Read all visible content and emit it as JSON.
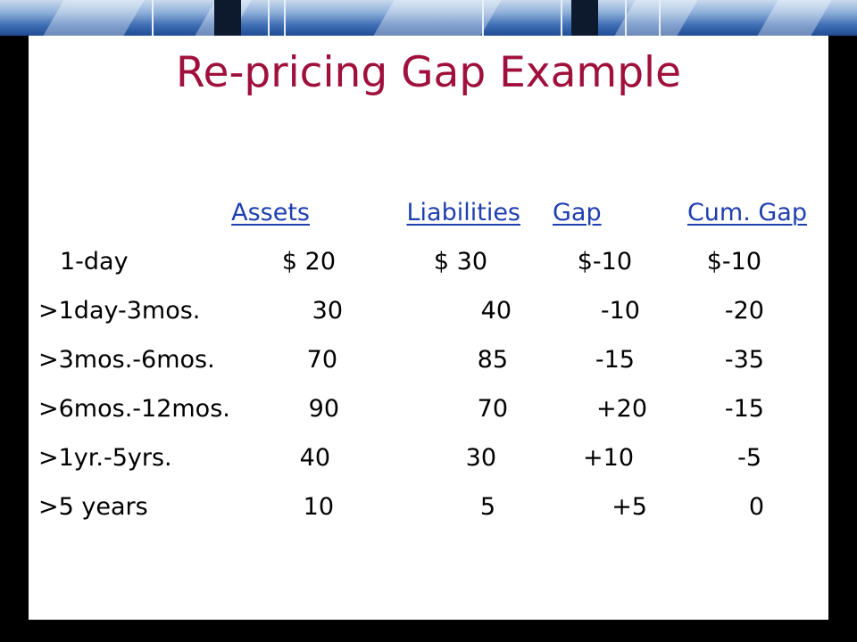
{
  "slide": {
    "title": "Re-pricing Gap Example",
    "colors": {
      "title": "#a0103c",
      "header": "#1f3fb0",
      "body_text": "#000000",
      "panel": "#ffffff",
      "frame": "#000000"
    }
  },
  "table": {
    "headers": [
      "Assets",
      "Liabilities",
      "Gap",
      "Cum. Gap"
    ],
    "rows": [
      {
        "bucket": "1-day",
        "assets": "$ 20",
        "liabilities": "$ 30",
        "gap": "$-10",
        "cum_gap": "$-10"
      },
      {
        "bucket": ">1day-3mos.",
        "assets": "30",
        "liabilities": "40",
        "gap": "-10",
        "cum_gap": "-20"
      },
      {
        "bucket": ">3mos.-6mos.",
        "assets": "70",
        "liabilities": "85",
        "gap": "-15",
        "cum_gap": "-35"
      },
      {
        "bucket": ">6mos.-12mos.",
        "assets": "90",
        "liabilities": "70",
        "gap": "+20",
        "cum_gap": "-15"
      },
      {
        "bucket": ">1yr.-5yrs.",
        "assets": "40",
        "liabilities": "30",
        "gap": "+10",
        "cum_gap": "-5"
      },
      {
        "bucket": ">5 years",
        "assets": "10",
        "liabilities": "5",
        "gap": "+5",
        "cum_gap": "0"
      }
    ]
  }
}
